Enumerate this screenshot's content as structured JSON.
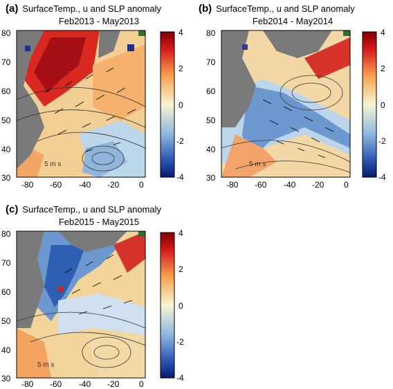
{
  "panels": [
    {
      "id": "a",
      "letter": "(a)",
      "title": "SurfaceTemp., u and SLP anomaly",
      "period": "Feb2013 - May2013",
      "scale_label": "5 m s⁻¹"
    },
    {
      "id": "b",
      "letter": "(b)",
      "title": "SurfaceTemp., u and SLP anomaly",
      "period": "Feb2014 - May2014",
      "scale_label": "5 m s⁻¹"
    },
    {
      "id": "c",
      "letter": "(c)",
      "title": "SurfaceTemp., u and SLP anomaly",
      "period": "Feb2015 - May2015",
      "scale_label": "5 m s⁻¹"
    }
  ],
  "x_ticks": [
    "-80",
    "-60",
    "-40",
    "-20",
    "0"
  ],
  "y_ticks": [
    "80",
    "70",
    "60",
    "50",
    "40",
    "30"
  ],
  "colorbar_ticks": [
    "4",
    "2",
    "0",
    "-2",
    "-4"
  ],
  "colors": {
    "land": "#7a7a7a",
    "cold": "#1a2f8f",
    "cool": "#8fb5dc",
    "neutral": "#f2f0d6",
    "warm": "#f3a85c",
    "hot": "#a80f16"
  }
}
